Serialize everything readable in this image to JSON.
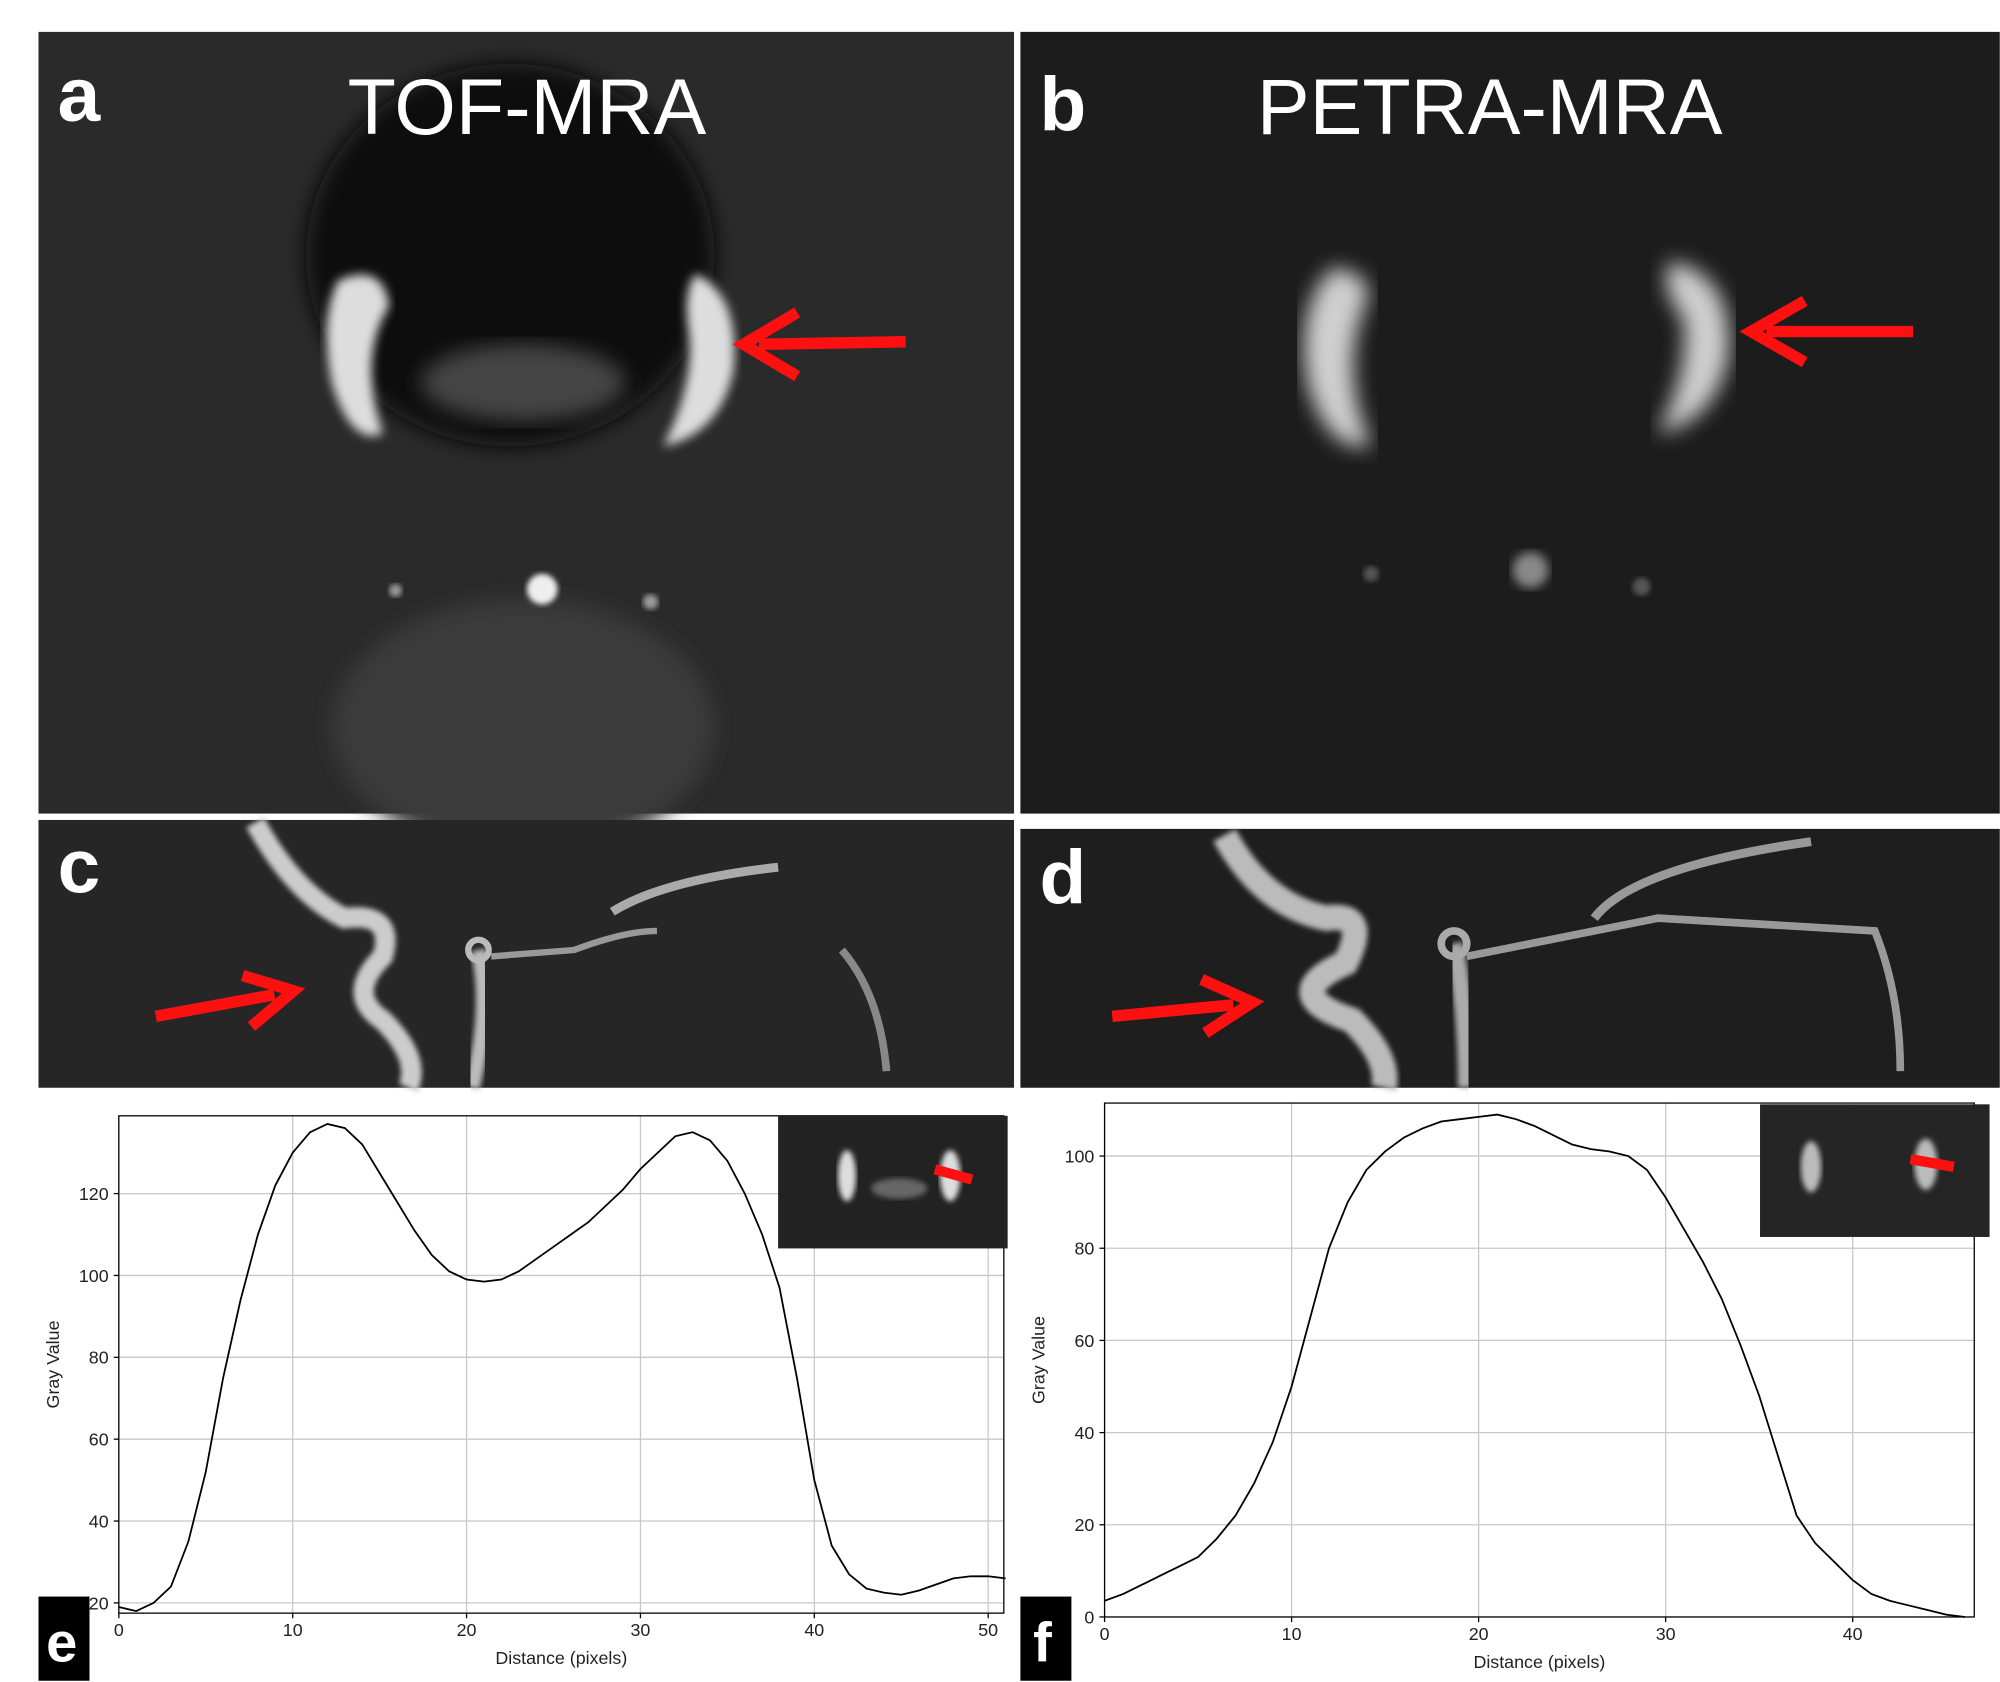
{
  "panels": {
    "a": "a",
    "a_title": "TOF-MRA",
    "b": "b",
    "b_title": "PETRA-MRA",
    "c": "c",
    "d": "d",
    "e": "e",
    "f": "f"
  },
  "chart_data": [
    {
      "type": "line",
      "xlabel": "Distance (pixels)",
      "ylabel": "Gray Value",
      "color": "#000000",
      "grid": true,
      "x": [
        0,
        1,
        2,
        3,
        4,
        5,
        6,
        7,
        8,
        9,
        10,
        11,
        12,
        13,
        14,
        15,
        16,
        17,
        18,
        19,
        20,
        21,
        22,
        23,
        24,
        25,
        26,
        27,
        28,
        29,
        30,
        31,
        32,
        33,
        34,
        35,
        36,
        37,
        38,
        39,
        40,
        41,
        42,
        43,
        44,
        45,
        46,
        47,
        48,
        49,
        50,
        51
      ],
      "values": [
        19,
        18,
        20,
        24,
        35,
        52,
        75,
        94,
        110,
        122,
        130,
        135,
        137,
        136,
        132,
        125,
        118,
        111,
        105,
        101,
        99,
        98.5,
        99,
        101,
        104,
        107,
        110,
        113,
        117,
        121,
        126,
        130,
        134,
        135,
        133,
        128,
        120,
        110,
        97,
        75,
        50,
        34,
        27,
        23.5,
        22.5,
        22,
        23,
        24.5,
        26,
        26.5,
        26.5,
        26
      ],
      "xlim": [
        0,
        50.9
      ],
      "ylim": [
        17.5,
        139
      ],
      "xticks": [
        0,
        10,
        20,
        30,
        40,
        50
      ],
      "yticks": [
        20,
        40,
        60,
        80,
        100,
        120
      ]
    },
    {
      "type": "line",
      "xlabel": "Distance (pixels)",
      "ylabel": "Gray Value",
      "color": "#000000",
      "grid": true,
      "x": [
        0,
        1,
        2,
        3,
        4,
        5,
        6,
        7,
        8,
        9,
        10,
        11,
        12,
        13,
        14,
        15,
        16,
        17,
        18,
        19,
        20,
        21,
        22,
        23,
        24,
        25,
        26,
        27,
        28,
        29,
        30,
        31,
        32,
        33,
        34,
        35,
        36,
        37,
        38,
        39,
        40,
        41,
        42,
        43,
        44,
        45,
        46
      ],
      "values": [
        3.5,
        5,
        7,
        9,
        11,
        13,
        17,
        22,
        29,
        38,
        50,
        65,
        80,
        90,
        97,
        101,
        104,
        106,
        107.5,
        108,
        108.5,
        109,
        108,
        106.5,
        104.5,
        102.5,
        101.5,
        101,
        100,
        97,
        91,
        84,
        77,
        69,
        59,
        48,
        35,
        22,
        16,
        12,
        8,
        5,
        3.5,
        2.5,
        1.5,
        0.5,
        0
      ],
      "xlim": [
        0,
        46.5
      ],
      "ylim": [
        0,
        111.5
      ],
      "xticks": [
        0,
        10,
        20,
        30,
        40
      ],
      "yticks": [
        0,
        20,
        40,
        60,
        80,
        100
      ]
    }
  ]
}
